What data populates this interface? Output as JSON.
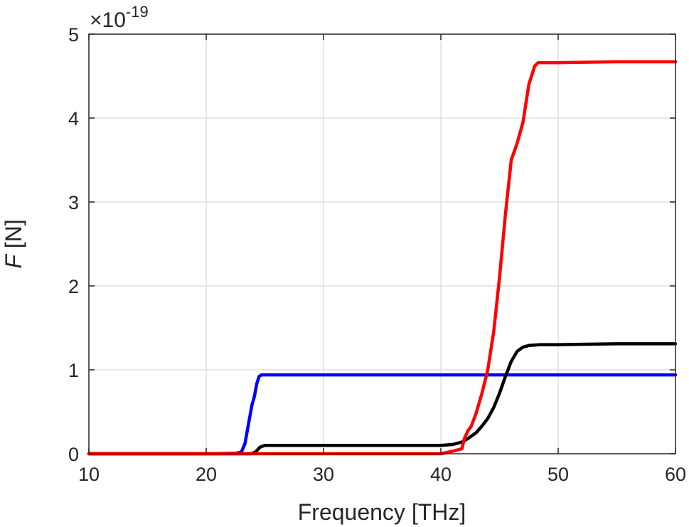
{
  "chart_data": {
    "type": "line",
    "xlabel": "Frequency [THz]",
    "ylabel_var": "F",
    "ylabel_unit": " [N]",
    "y_exponent_base": "×10",
    "y_exponent_power": "-19",
    "xlim": [
      10,
      60
    ],
    "ylim": [
      0,
      5
    ],
    "xticks": [
      "10",
      "20",
      "30",
      "40",
      "50",
      "60"
    ],
    "yticks": [
      "0",
      "1",
      "2",
      "3",
      "4",
      "5"
    ],
    "grid": true,
    "legend": "none",
    "y_scale_note": "y values in units of 1e-19 N",
    "series": [
      {
        "color": "#0000ff",
        "x": [
          10,
          20,
          22.5,
          23.0,
          23.3,
          23.6,
          23.9,
          24.1,
          24.3,
          24.5,
          24.7,
          25,
          30,
          40,
          50,
          60
        ],
        "y": [
          0,
          0,
          0.005,
          0.02,
          0.12,
          0.35,
          0.58,
          0.68,
          0.83,
          0.92,
          0.94,
          0.94,
          0.94,
          0.94,
          0.94,
          0.94
        ]
      },
      {
        "color": "#000000",
        "x": [
          10,
          23.8,
          24.2,
          24.6,
          25,
          30,
          35,
          40,
          41,
          41.8,
          42.3,
          43,
          43.5,
          44,
          44.5,
          45,
          45.5,
          46,
          46.5,
          47,
          47.5,
          48.5,
          50,
          55,
          60
        ],
        "y": [
          0,
          0,
          0.02,
          0.08,
          0.1,
          0.1,
          0.1,
          0.1,
          0.11,
          0.14,
          0.18,
          0.25,
          0.33,
          0.42,
          0.55,
          0.72,
          0.92,
          1.1,
          1.22,
          1.27,
          1.29,
          1.3,
          1.3,
          1.31,
          1.31
        ]
      },
      {
        "color": "#ff0000",
        "x": [
          10,
          30,
          40,
          41,
          41.8,
          42.0,
          42.3,
          42.6,
          43,
          43.5,
          44,
          44.5,
          45,
          45.5,
          46,
          46.5,
          47,
          47.5,
          48,
          48.3,
          48.7,
          50,
          55,
          60
        ],
        "y": [
          0,
          0,
          0,
          0.03,
          0.06,
          0.18,
          0.27,
          0.33,
          0.48,
          0.72,
          1.0,
          1.45,
          2.1,
          2.85,
          3.5,
          3.7,
          3.95,
          4.4,
          4.62,
          4.66,
          4.66,
          4.66,
          4.67,
          4.67
        ]
      }
    ]
  }
}
